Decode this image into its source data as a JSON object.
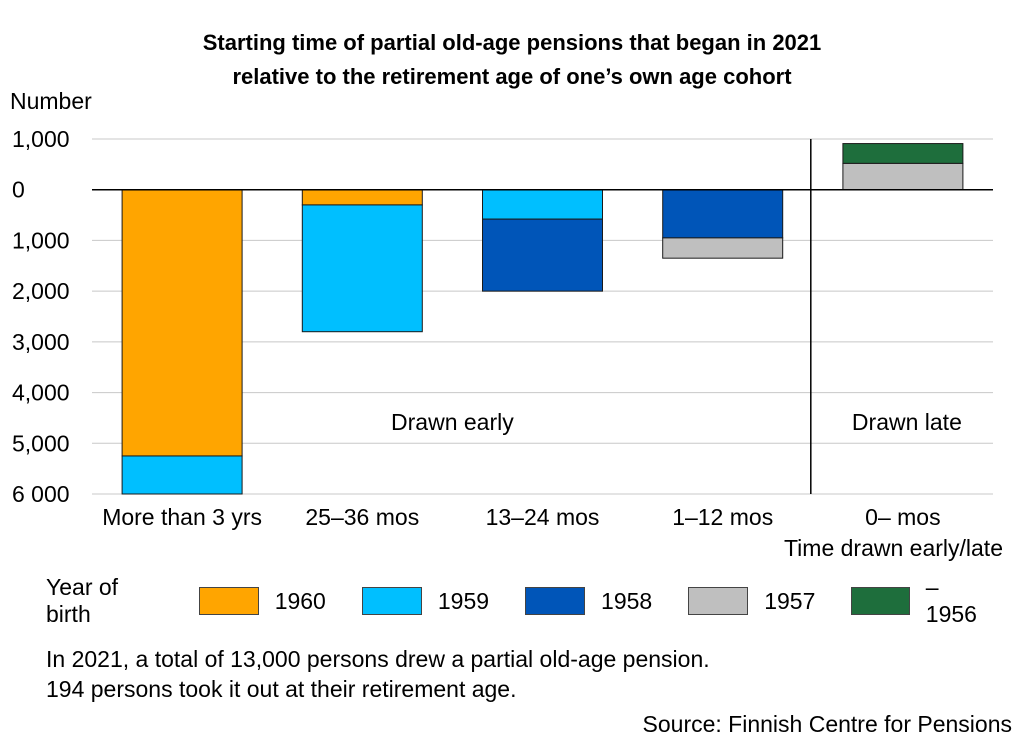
{
  "title_line1": "Starting time of partial old-age pensions that began in 2021",
  "title_line2": "relative to the retirement age of one’s own age cohort",
  "note_line1": "In 2021, a total of 13,000 persons drew a partial old-age pension.",
  "note_line2": "194 persons took it out at their retirement age.",
  "source": "Source: Finnish Centre for Pensions",
  "legend_title": "Year of birth",
  "chart_data": {
    "type": "bar",
    "stacked": true,
    "ylabel": "Number",
    "xlabel": "Time drawn early/late",
    "ylim": [
      -6000,
      1000
    ],
    "y_ticks": [
      {
        "value": 1000,
        "label": "1,000"
      },
      {
        "value": 0,
        "label": "0"
      },
      {
        "value": -1000,
        "label": "1,000"
      },
      {
        "value": -2000,
        "label": "2,000"
      },
      {
        "value": -3000,
        "label": "3,000"
      },
      {
        "value": -4000,
        "label": "4,000"
      },
      {
        "value": -5000,
        "label": "5,000"
      },
      {
        "value": -6000,
        "label": "6 000"
      }
    ],
    "grid": true,
    "categories": [
      "More than 3 yrs",
      "25–36 mos",
      "13–24 mos",
      "1–12 mos",
      "0– mos"
    ],
    "region_labels": [
      {
        "text": "Drawn early",
        "categories": [
          0,
          3
        ]
      },
      {
        "text": "Drawn late",
        "categories": [
          4,
          4
        ]
      }
    ],
    "series": [
      {
        "name": "1960",
        "color": "#FFA500",
        "values": [
          -5250,
          -300,
          0,
          0,
          0
        ]
      },
      {
        "name": "1959",
        "color": "#00BFFF",
        "values": [
          -750,
          -2500,
          -580,
          0,
          0
        ]
      },
      {
        "name": "1958",
        "color": "#0055B8",
        "values": [
          0,
          0,
          -1420,
          -950,
          0
        ]
      },
      {
        "name": "1957",
        "color": "#BFBFBF",
        "values": [
          0,
          0,
          0,
          -400,
          520
        ]
      },
      {
        "name": "–1956",
        "color": "#1E6E3C",
        "values": [
          0,
          0,
          0,
          0,
          390
        ]
      }
    ]
  }
}
